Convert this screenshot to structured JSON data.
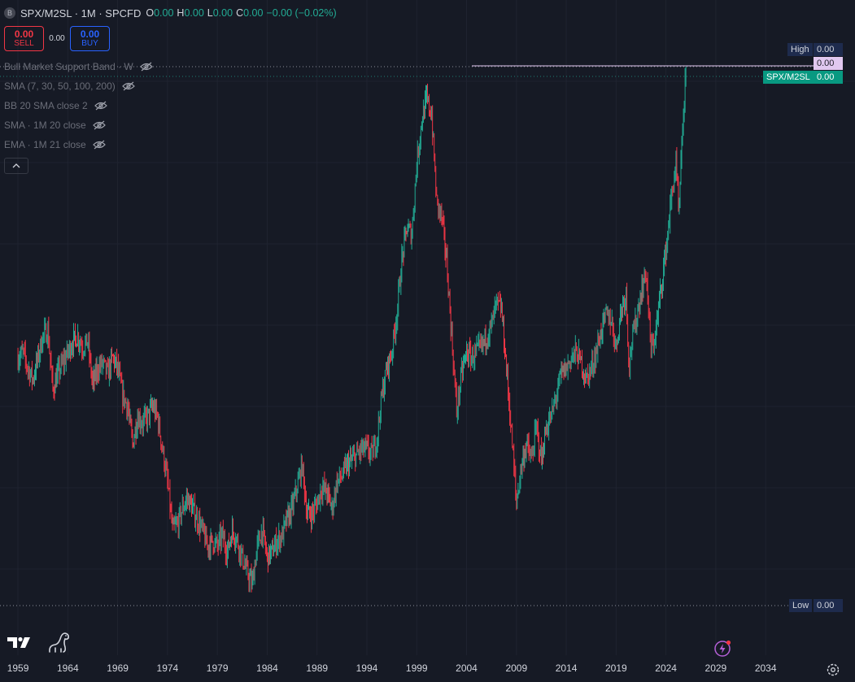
{
  "header": {
    "symbol_badge": "B",
    "title": "SPX/M2SL · 1M · SPCFD",
    "ohlc": [
      {
        "k": "O",
        "v": "0.00"
      },
      {
        "k": "H",
        "v": "0.00"
      },
      {
        "k": "L",
        "v": "0.00"
      },
      {
        "k": "C",
        "v": "0.00"
      }
    ],
    "change": "−0.00 (−0.02%)"
  },
  "trade": {
    "sell_price": "0.00",
    "sell_label": "SELL",
    "spread": "0.00",
    "buy_price": "0.00",
    "buy_label": "BUY"
  },
  "indicators": [
    {
      "label": "Bull Market Support Band · W"
    },
    {
      "label": "SMA (7, 30, 50, 100, 200)"
    },
    {
      "label": "BB 20 SMA close 2"
    },
    {
      "label": "SMA · 1M 20 close"
    },
    {
      "label": "EMA · 1M 21 close"
    }
  ],
  "price_labels": {
    "high_label": "High",
    "high_value": "0.00",
    "last_value": "0.00",
    "symbol_label": "SPX/M2SL",
    "symbol_value": "0.00",
    "low_label": "Low",
    "low_value": "0.00"
  },
  "colors": {
    "background": "#161a25",
    "up": "#22ab94",
    "down": "#f23645",
    "grid": "#1f2330",
    "symbol_tag": "#089981",
    "high_low_tag": "#1e2b4d",
    "last_price_tag": "#e1c8f0"
  },
  "chart_data": {
    "type": "candlestick",
    "title": "SPX/M2SL · 1M · SPCFD",
    "x_ticks": [
      "1959",
      "1964",
      "1969",
      "1974",
      "1979",
      "1984",
      "1989",
      "1994",
      "1999",
      "2004",
      "2009",
      "2014",
      "2019",
      "2024",
      "2029",
      "2034"
    ],
    "x_range": [
      1957.2,
      2038.8
    ],
    "grid": true,
    "series": [
      {
        "values_note_x": "year",
        "points": [
          [
            1959.0,
            0.46
          ],
          [
            1959.5,
            0.47
          ],
          [
            1960.0,
            0.44
          ],
          [
            1960.5,
            0.42
          ],
          [
            1961.0,
            0.46
          ],
          [
            1961.5,
            0.5
          ],
          [
            1962.0,
            0.51
          ],
          [
            1962.5,
            0.4
          ],
          [
            1963.0,
            0.43
          ],
          [
            1963.5,
            0.45
          ],
          [
            1964.0,
            0.47
          ],
          [
            1964.5,
            0.49
          ],
          [
            1965.0,
            0.5
          ],
          [
            1965.5,
            0.48
          ],
          [
            1966.0,
            0.49
          ],
          [
            1966.5,
            0.41
          ],
          [
            1967.0,
            0.44
          ],
          [
            1967.5,
            0.45
          ],
          [
            1968.0,
            0.43
          ],
          [
            1968.5,
            0.46
          ],
          [
            1969.0,
            0.44
          ],
          [
            1969.5,
            0.39
          ],
          [
            1970.0,
            0.37
          ],
          [
            1970.5,
            0.3
          ],
          [
            1971.0,
            0.35
          ],
          [
            1971.5,
            0.34
          ],
          [
            1972.0,
            0.35
          ],
          [
            1972.5,
            0.37
          ],
          [
            1973.0,
            0.35
          ],
          [
            1973.5,
            0.29
          ],
          [
            1974.0,
            0.23
          ],
          [
            1974.5,
            0.14
          ],
          [
            1975.0,
            0.15
          ],
          [
            1975.5,
            0.18
          ],
          [
            1976.0,
            0.2
          ],
          [
            1976.5,
            0.18
          ],
          [
            1977.0,
            0.16
          ],
          [
            1977.5,
            0.14
          ],
          [
            1978.0,
            0.11
          ],
          [
            1978.5,
            0.12
          ],
          [
            1979.0,
            0.11
          ],
          [
            1979.5,
            0.13
          ],
          [
            1980.0,
            0.1
          ],
          [
            1980.5,
            0.14
          ],
          [
            1981.0,
            0.12
          ],
          [
            1981.5,
            0.09
          ],
          [
            1982.0,
            0.06
          ],
          [
            1982.5,
            0.04
          ],
          [
            1983.0,
            0.11
          ],
          [
            1983.5,
            0.14
          ],
          [
            1984.0,
            0.09
          ],
          [
            1984.5,
            0.1
          ],
          [
            1985.0,
            0.12
          ],
          [
            1985.5,
            0.13
          ],
          [
            1986.0,
            0.16
          ],
          [
            1986.5,
            0.18
          ],
          [
            1987.0,
            0.22
          ],
          [
            1987.5,
            0.26
          ],
          [
            1988.0,
            0.17
          ],
          [
            1988.5,
            0.17
          ],
          [
            1989.0,
            0.19
          ],
          [
            1989.5,
            0.22
          ],
          [
            1990.0,
            0.21
          ],
          [
            1990.5,
            0.18
          ],
          [
            1991.0,
            0.23
          ],
          [
            1991.5,
            0.24
          ],
          [
            1992.0,
            0.26
          ],
          [
            1992.5,
            0.27
          ],
          [
            1993.0,
            0.28
          ],
          [
            1993.5,
            0.29
          ],
          [
            1994.0,
            0.29
          ],
          [
            1994.5,
            0.28
          ],
          [
            1995.0,
            0.31
          ],
          [
            1995.5,
            0.39
          ],
          [
            1996.0,
            0.44
          ],
          [
            1996.5,
            0.47
          ],
          [
            1997.0,
            0.54
          ],
          [
            1997.5,
            0.64
          ],
          [
            1998.0,
            0.7
          ],
          [
            1998.5,
            0.69
          ],
          [
            1999.0,
            0.82
          ],
          [
            1999.5,
            0.9
          ],
          [
            2000.0,
            0.94
          ],
          [
            2000.5,
            0.91
          ],
          [
            2001.0,
            0.75
          ],
          [
            2001.5,
            0.72
          ],
          [
            2002.0,
            0.64
          ],
          [
            2002.5,
            0.5
          ],
          [
            2003.0,
            0.36
          ],
          [
            2003.5,
            0.43
          ],
          [
            2004.0,
            0.47
          ],
          [
            2004.5,
            0.46
          ],
          [
            2005.0,
            0.47
          ],
          [
            2005.5,
            0.48
          ],
          [
            2006.0,
            0.5
          ],
          [
            2006.5,
            0.52
          ],
          [
            2007.0,
            0.56
          ],
          [
            2007.5,
            0.55
          ],
          [
            2008.0,
            0.44
          ],
          [
            2008.5,
            0.32
          ],
          [
            2009.0,
            0.19
          ],
          [
            2009.5,
            0.26
          ],
          [
            2010.0,
            0.3
          ],
          [
            2010.5,
            0.27
          ],
          [
            2011.0,
            0.33
          ],
          [
            2011.5,
            0.27
          ],
          [
            2012.0,
            0.33
          ],
          [
            2012.5,
            0.35
          ],
          [
            2013.0,
            0.39
          ],
          [
            2013.5,
            0.43
          ],
          [
            2014.0,
            0.44
          ],
          [
            2014.5,
            0.46
          ],
          [
            2015.0,
            0.47
          ],
          [
            2015.5,
            0.45
          ],
          [
            2016.0,
            0.42
          ],
          [
            2016.5,
            0.44
          ],
          [
            2017.0,
            0.47
          ],
          [
            2017.5,
            0.51
          ],
          [
            2018.0,
            0.54
          ],
          [
            2018.5,
            0.53
          ],
          [
            2019.0,
            0.48
          ],
          [
            2019.5,
            0.55
          ],
          [
            2020.0,
            0.58
          ],
          [
            2020.3,
            0.44
          ],
          [
            2020.5,
            0.48
          ],
          [
            2021.0,
            0.53
          ],
          [
            2021.5,
            0.58
          ],
          [
            2022.0,
            0.62
          ],
          [
            2022.5,
            0.47
          ],
          [
            2023.0,
            0.51
          ],
          [
            2023.5,
            0.59
          ],
          [
            2024.0,
            0.66
          ],
          [
            2024.5,
            0.75
          ],
          [
            2025.0,
            0.82
          ],
          [
            2025.3,
            0.72
          ],
          [
            2025.6,
            0.86
          ],
          [
            2025.9,
            0.96
          ],
          [
            2026.0,
            0.98
          ]
        ]
      }
    ],
    "ylim": [
      0,
      1
    ],
    "legend": ""
  }
}
